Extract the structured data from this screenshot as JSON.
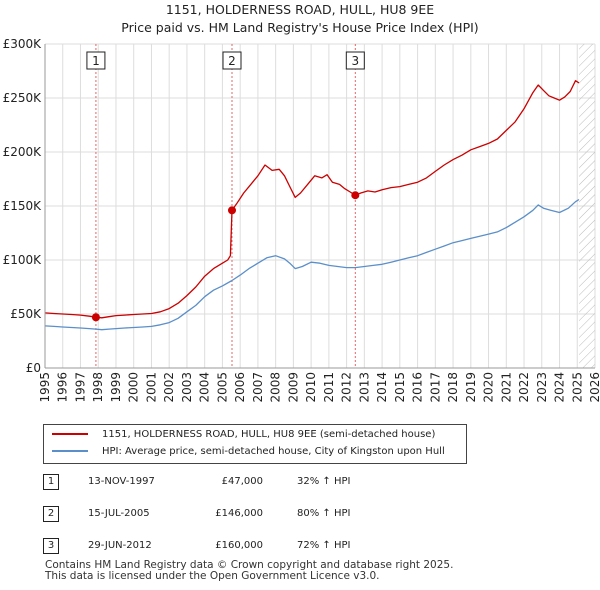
{
  "title_line1": "1151, HOLDERNESS ROAD, HULL, HU8 9EE",
  "title_line2": "Price paid vs. HM Land Registry's House Price Index (HPI)",
  "colors": {
    "property": "#cc0000",
    "hpi": "#5b8fc9",
    "grid": "#dddddd",
    "marker_line": "#e06666",
    "hatch": "#bbbbbb"
  },
  "chart_data": {
    "type": "line",
    "title": "Price paid vs. HM Land Registry's House Price Index (HPI)",
    "xlim": [
      1995,
      2026
    ],
    "ylim": [
      0,
      300000
    ],
    "xticks": [
      1995,
      1996,
      1997,
      1998,
      1999,
      2000,
      2001,
      2002,
      2003,
      2004,
      2005,
      2006,
      2007,
      2008,
      2009,
      2010,
      2011,
      2012,
      2013,
      2014,
      2015,
      2016,
      2017,
      2018,
      2019,
      2020,
      2021,
      2022,
      2023,
      2024,
      2025,
      2026
    ],
    "yticks": [
      {
        "value": 0,
        "label": "£0"
      },
      {
        "value": 50000,
        "label": "£50K"
      },
      {
        "value": 100000,
        "label": "£100K"
      },
      {
        "value": 150000,
        "label": "£150K"
      },
      {
        "value": 200000,
        "label": "£200K"
      },
      {
        "value": 250000,
        "label": "£250K"
      },
      {
        "value": 300000,
        "label": "£300K"
      }
    ],
    "future_hatch_from": 2025.1,
    "series": [
      {
        "name": "1151, HOLDERNESS ROAD, HULL, HU8 9EE (semi-detached house)",
        "color": "#cc0000",
        "points": [
          [
            1995.0,
            51000
          ],
          [
            1995.5,
            50500
          ],
          [
            1996.0,
            50000
          ],
          [
            1996.5,
            49500
          ],
          [
            1997.0,
            49000
          ],
          [
            1997.5,
            48000
          ],
          [
            1997.87,
            47000
          ],
          [
            1998.2,
            46500
          ],
          [
            1998.6,
            47500
          ],
          [
            1999.0,
            48500
          ],
          [
            1999.5,
            49000
          ],
          [
            2000.0,
            49500
          ],
          [
            2000.5,
            50000
          ],
          [
            2001.0,
            50500
          ],
          [
            2001.5,
            52000
          ],
          [
            2002.0,
            55000
          ],
          [
            2002.5,
            60000
          ],
          [
            2003.0,
            67000
          ],
          [
            2003.5,
            75000
          ],
          [
            2004.0,
            85000
          ],
          [
            2004.5,
            92000
          ],
          [
            2005.0,
            97000
          ],
          [
            2005.3,
            100000
          ],
          [
            2005.45,
            104000
          ],
          [
            2005.54,
            146000
          ],
          [
            2005.8,
            152000
          ],
          [
            2006.2,
            162000
          ],
          [
            2006.6,
            170000
          ],
          [
            2007.0,
            178000
          ],
          [
            2007.4,
            188000
          ],
          [
            2007.8,
            183000
          ],
          [
            2008.2,
            184000
          ],
          [
            2008.5,
            178000
          ],
          [
            2008.8,
            168000
          ],
          [
            2009.1,
            158000
          ],
          [
            2009.4,
            162000
          ],
          [
            2009.8,
            170000
          ],
          [
            2010.2,
            178000
          ],
          [
            2010.6,
            176000
          ],
          [
            2010.9,
            179000
          ],
          [
            2011.2,
            172000
          ],
          [
            2011.6,
            170000
          ],
          [
            2011.9,
            166000
          ],
          [
            2012.2,
            163000
          ],
          [
            2012.49,
            160000
          ],
          [
            2012.8,
            162000
          ],
          [
            2013.2,
            164000
          ],
          [
            2013.6,
            163000
          ],
          [
            2014.0,
            165000
          ],
          [
            2014.5,
            167000
          ],
          [
            2015.0,
            168000
          ],
          [
            2015.5,
            170000
          ],
          [
            2016.0,
            172000
          ],
          [
            2016.5,
            176000
          ],
          [
            2017.0,
            182000
          ],
          [
            2017.5,
            188000
          ],
          [
            2018.0,
            193000
          ],
          [
            2018.5,
            197000
          ],
          [
            2019.0,
            202000
          ],
          [
            2019.5,
            205000
          ],
          [
            2020.0,
            208000
          ],
          [
            2020.5,
            212000
          ],
          [
            2021.0,
            220000
          ],
          [
            2021.5,
            228000
          ],
          [
            2022.0,
            240000
          ],
          [
            2022.5,
            255000
          ],
          [
            2022.8,
            262000
          ],
          [
            2023.1,
            257000
          ],
          [
            2023.4,
            252000
          ],
          [
            2023.7,
            250000
          ],
          [
            2024.0,
            248000
          ],
          [
            2024.3,
            251000
          ],
          [
            2024.6,
            256000
          ],
          [
            2024.9,
            266000
          ],
          [
            2025.1,
            264000
          ]
        ]
      },
      {
        "name": "HPI: Average price, semi-detached house, City of Kingston upon Hull",
        "color": "#5b8fc9",
        "points": [
          [
            1995.0,
            39000
          ],
          [
            1995.5,
            38500
          ],
          [
            1996.0,
            38000
          ],
          [
            1996.5,
            37500
          ],
          [
            1997.0,
            37000
          ],
          [
            1997.5,
            36500
          ],
          [
            1997.87,
            36000
          ],
          [
            1998.2,
            35500
          ],
          [
            1998.6,
            36000
          ],
          [
            1999.0,
            36500
          ],
          [
            1999.5,
            37000
          ],
          [
            2000.0,
            37500
          ],
          [
            2000.5,
            38000
          ],
          [
            2001.0,
            38500
          ],
          [
            2001.5,
            40000
          ],
          [
            2002.0,
            42000
          ],
          [
            2002.5,
            46000
          ],
          [
            2003.0,
            52000
          ],
          [
            2003.5,
            58000
          ],
          [
            2004.0,
            66000
          ],
          [
            2004.5,
            72000
          ],
          [
            2005.0,
            76000
          ],
          [
            2005.54,
            81000
          ],
          [
            2006.0,
            86000
          ],
          [
            2006.5,
            92000
          ],
          [
            2007.0,
            97000
          ],
          [
            2007.5,
            102000
          ],
          [
            2008.0,
            104000
          ],
          [
            2008.5,
            101000
          ],
          [
            2008.8,
            97000
          ],
          [
            2009.1,
            92000
          ],
          [
            2009.5,
            94000
          ],
          [
            2010.0,
            98000
          ],
          [
            2010.5,
            97000
          ],
          [
            2011.0,
            95000
          ],
          [
            2011.5,
            94000
          ],
          [
            2012.0,
            93000
          ],
          [
            2012.49,
            93000
          ],
          [
            2013.0,
            94000
          ],
          [
            2013.5,
            95000
          ],
          [
            2014.0,
            96000
          ],
          [
            2014.5,
            98000
          ],
          [
            2015.0,
            100000
          ],
          [
            2015.5,
            102000
          ],
          [
            2016.0,
            104000
          ],
          [
            2016.5,
            107000
          ],
          [
            2017.0,
            110000
          ],
          [
            2017.5,
            113000
          ],
          [
            2018.0,
            116000
          ],
          [
            2018.5,
            118000
          ],
          [
            2019.0,
            120000
          ],
          [
            2019.5,
            122000
          ],
          [
            2020.0,
            124000
          ],
          [
            2020.5,
            126000
          ],
          [
            2021.0,
            130000
          ],
          [
            2021.5,
            135000
          ],
          [
            2022.0,
            140000
          ],
          [
            2022.5,
            146000
          ],
          [
            2022.8,
            151000
          ],
          [
            2023.1,
            148000
          ],
          [
            2023.5,
            146000
          ],
          [
            2024.0,
            144000
          ],
          [
            2024.5,
            148000
          ],
          [
            2024.9,
            154000
          ],
          [
            2025.1,
            156000
          ]
        ]
      }
    ],
    "sales": [
      {
        "label": "1",
        "x": 1997.87,
        "value": 47000
      },
      {
        "label": "2",
        "x": 2005.54,
        "value": 146000
      },
      {
        "label": "3",
        "x": 2012.49,
        "value": 160000
      }
    ]
  },
  "legend": {
    "property": "1151, HOLDERNESS ROAD, HULL, HU8 9EE (semi-detached house)",
    "hpi": "HPI: Average price, semi-detached house, City of Kingston upon Hull"
  },
  "transactions": [
    {
      "num": "1",
      "date": "13-NOV-1997",
      "price": "£47,000",
      "hpi": "32% ↑ HPI"
    },
    {
      "num": "2",
      "date": "15-JUL-2005",
      "price": "£146,000",
      "hpi": "80% ↑ HPI"
    },
    {
      "num": "3",
      "date": "29-JUN-2012",
      "price": "£160,000",
      "hpi": "72% ↑ HPI"
    }
  ],
  "footer": {
    "line1": "Contains HM Land Registry data © Crown copyright and database right 2025.",
    "line2": "This data is licensed under the Open Government Licence v3.0."
  }
}
